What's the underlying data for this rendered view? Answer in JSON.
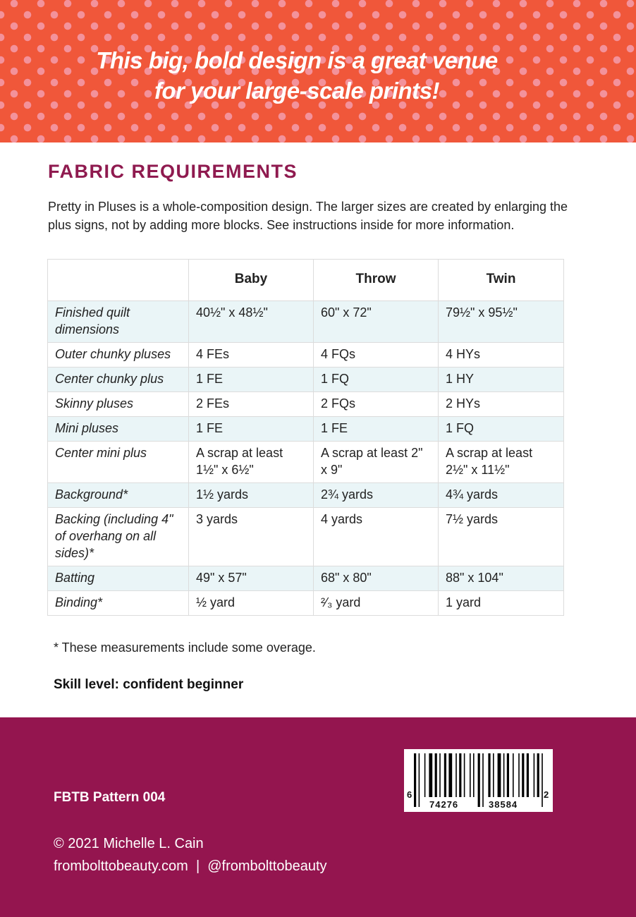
{
  "banner": {
    "tagline_line1": "This big, bold design is a great venue",
    "tagline_line2": "for your large-scale prints!",
    "colors": {
      "background": "#f0573a",
      "dots": "#f3929b"
    }
  },
  "section": {
    "heading": "FABRIC REQUIREMENTS",
    "intro": "Pretty in Pluses is a whole-composition design. The larger sizes are created by enlarging the plus signs, not by adding more blocks. See instructions inside for more information."
  },
  "table": {
    "headers": [
      "",
      "Baby",
      "Throw",
      "Twin"
    ],
    "rows": [
      [
        "Finished quilt dimensions",
        "40½\" x 48½\"",
        "60\" x 72\"",
        "79½\" x 95½\""
      ],
      [
        "Outer chunky pluses",
        "4 FEs",
        "4 FQs",
        "4 HYs"
      ],
      [
        "Center chunky plus",
        "1 FE",
        "1 FQ",
        "1 HY"
      ],
      [
        "Skinny pluses",
        "2 FEs",
        "2 FQs",
        "2 HYs"
      ],
      [
        "Mini pluses",
        "1 FE",
        "1 FE",
        "1 FQ"
      ],
      [
        "Center mini plus",
        "A scrap at least 1½\" x 6½\"",
        "A scrap at least 2\" x 9\"",
        "A scrap at least 2½\" x 11½\""
      ],
      [
        "Background*",
        "1½ yards",
        "2¾ yards",
        "4¾ yards"
      ],
      [
        "Backing (including 4\" of overhang on all sides)*",
        "3 yards",
        "4 yards",
        "7½ yards"
      ],
      [
        "Batting",
        "49\" x 57\"",
        "68\" x 80\"",
        "88\" x 104\""
      ],
      [
        "Binding*",
        "½ yard",
        "²⁄₃ yard",
        "1 yard"
      ]
    ]
  },
  "note": "* These measurements include some overage.",
  "skill": "Skill level: confident beginner",
  "footer": {
    "pattern": "FBTB Pattern 004",
    "copyright": "© 2021 Michelle L. Cain",
    "website_line": "frombolttobeauty.com  |  @frombolttobeauty",
    "color": "#94154f",
    "barcode": {
      "first": "6",
      "left": "74276",
      "right": "38584",
      "check": "2"
    }
  }
}
